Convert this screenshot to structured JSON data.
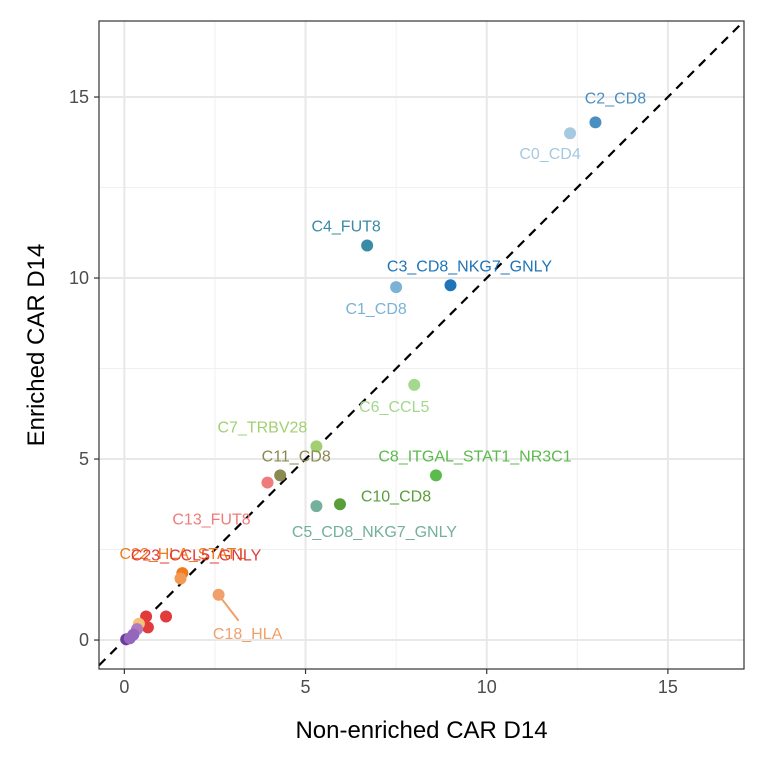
{
  "chart_data": {
    "type": "scatter",
    "xlabel": "Non-enriched CAR D14",
    "ylabel": "Enriched CAR D14",
    "xlim": [
      -0.7,
      17.1
    ],
    "ylim": [
      -0.8,
      17.1
    ],
    "x_ticks": [
      0,
      5,
      10,
      15
    ],
    "y_ticks": [
      0,
      5,
      10,
      15
    ],
    "grid": true,
    "reference_line": "y = x (dashed)",
    "legend": "none",
    "points": [
      {
        "label": "C2_CD8",
        "x": 13.0,
        "y": 14.3,
        "color": "#4a8fc2",
        "show_label": true
      },
      {
        "label": "C0_CD4",
        "x": 12.3,
        "y": 14.0,
        "color": "#a6c9e2",
        "show_label": true
      },
      {
        "label": "C4_FUT8",
        "x": 6.7,
        "y": 10.9,
        "color": "#3a8ba6",
        "show_label": true
      },
      {
        "label": "C3_CD8_NKG7_GNLY",
        "x": 9.0,
        "y": 9.8,
        "color": "#1f74b8",
        "show_label": true
      },
      {
        "label": "C1_CD8",
        "x": 7.5,
        "y": 9.75,
        "color": "#7ab3d6",
        "show_label": true
      },
      {
        "label": "C6_CCL5",
        "x": 8.0,
        "y": 7.05,
        "color": "#a3d88f",
        "show_label": true
      },
      {
        "label": "C7_TRBV28",
        "x": 5.3,
        "y": 5.35,
        "color": "#a2cf70",
        "show_label": true
      },
      {
        "label": "C11_CD8",
        "x": 4.3,
        "y": 4.55,
        "color": "#8a8a52",
        "show_label": true
      },
      {
        "label": "C8_ITGAL_STAT1_NR3C1",
        "x": 8.6,
        "y": 4.55,
        "color": "#5bbb4c",
        "show_label": true
      },
      {
        "label": "C13_FUT8",
        "x": 3.95,
        "y": 4.35,
        "color": "#ef7b7b",
        "show_label": true
      },
      {
        "label": "C10_CD8",
        "x": 5.95,
        "y": 3.75,
        "color": "#5a9e3a",
        "show_label": true
      },
      {
        "label": "C5_CD8_NKG7_GNLY",
        "x": 5.3,
        "y": 3.7,
        "color": "#74b09b",
        "show_label": true
      },
      {
        "label": "C22_HLA_STAT1",
        "x": 1.6,
        "y": 1.85,
        "color": "#ee7c1f",
        "show_label": true
      },
      {
        "label": "",
        "x": 1.55,
        "y": 1.7,
        "color": "#f29a54",
        "show_label": false
      },
      {
        "label": "C18_HLA",
        "x": 2.6,
        "y": 1.25,
        "color": "#f0a06a",
        "show_label": true
      },
      {
        "label": "C23_CCL5_GNLY",
        "x": 1.15,
        "y": 0.65,
        "color": "#e23b3b",
        "show_label": true
      },
      {
        "label": "",
        "x": 0.6,
        "y": 0.65,
        "color": "#e23b3b",
        "show_label": false
      },
      {
        "label": "",
        "x": 0.65,
        "y": 0.35,
        "color": "#e23b3b",
        "show_label": false
      },
      {
        "label": "",
        "x": 0.4,
        "y": 0.45,
        "color": "#f5c07a",
        "show_label": false
      },
      {
        "label": "",
        "x": 0.35,
        "y": 0.3,
        "color": "#b07ac0",
        "show_label": false
      },
      {
        "label": "",
        "x": 0.25,
        "y": 0.15,
        "color": "#9467bd",
        "show_label": false
      },
      {
        "label": "",
        "x": 0.05,
        "y": 0.02,
        "color": "#6a3d9a",
        "show_label": false
      },
      {
        "label": "",
        "x": 0.15,
        "y": 0.05,
        "color": "#9467bd",
        "show_label": false
      }
    ]
  }
}
